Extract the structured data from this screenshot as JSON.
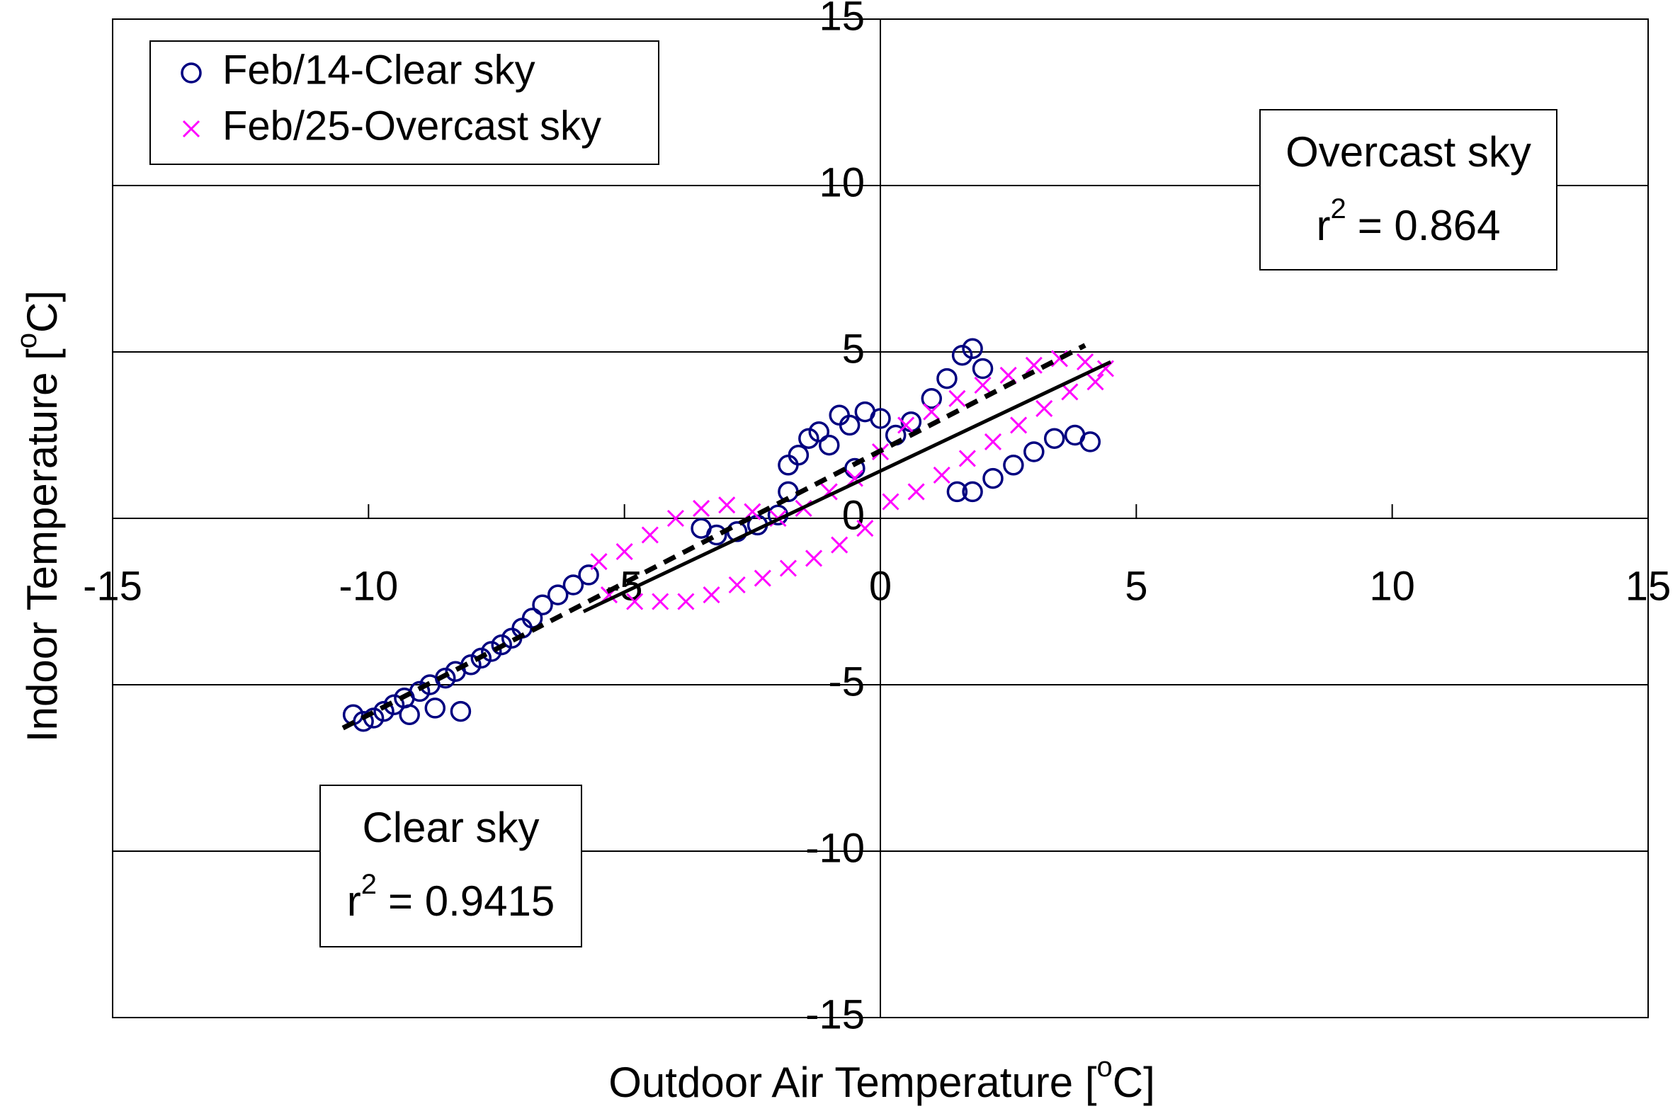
{
  "chart_data": {
    "type": "scatter",
    "xlabel": {
      "pre": "Outdoor Air Temperature [",
      "sup": "o",
      "post": "C]"
    },
    "ylabel": {
      "pre": "Indoor Temperature [",
      "sup": "o",
      "post": "C]"
    },
    "xlim": [
      -15,
      15
    ],
    "ylim": [
      -15,
      15
    ],
    "xticks": [
      -15,
      -10,
      -5,
      0,
      5,
      10,
      15
    ],
    "yticks": [
      -15,
      -10,
      -5,
      0,
      5,
      10,
      15
    ],
    "legend": "upper left",
    "series": [
      {
        "name": "Feb/14-Clear sky",
        "color": "#000080",
        "marker": "circle",
        "x": [
          -10.3,
          -10.1,
          -9.9,
          -9.7,
          -9.5,
          -9.3,
          -9.2,
          -9.0,
          -8.8,
          -8.7,
          -8.5,
          -8.3,
          -8.2,
          -8.0,
          -7.8,
          -7.6,
          -7.4,
          -7.2,
          -7.0,
          -6.8,
          -6.6,
          -6.3,
          -6.0,
          -5.7,
          -3.5,
          -3.2,
          -2.8,
          -2.4,
          -2.0,
          -1.8,
          -1.8,
          -1.6,
          -1.4,
          -1.2,
          -1.0,
          -0.8,
          -0.6,
          -0.3,
          0.0,
          -0.5,
          0.3,
          0.6,
          1.0,
          1.3,
          1.6,
          1.8,
          1.5,
          1.8,
          2.2,
          2.6,
          3.0,
          3.4,
          3.8,
          4.1,
          2.0
        ],
        "y": [
          -5.9,
          -6.1,
          -6.0,
          -5.8,
          -5.6,
          -5.4,
          -5.9,
          -5.2,
          -5.0,
          -5.7,
          -4.8,
          -4.6,
          -5.8,
          -4.4,
          -4.2,
          -4.0,
          -3.8,
          -3.6,
          -3.3,
          -3.0,
          -2.6,
          -2.3,
          -2.0,
          -1.7,
          -0.3,
          -0.5,
          -0.4,
          -0.2,
          0.1,
          0.8,
          1.6,
          1.9,
          2.4,
          2.6,
          2.2,
          3.1,
          2.8,
          3.2,
          3.0,
          1.5,
          2.5,
          2.9,
          3.6,
          4.2,
          4.9,
          5.1,
          0.8,
          0.8,
          1.2,
          1.6,
          2.0,
          2.4,
          2.5,
          2.3,
          4.5
        ]
      },
      {
        "name": "Feb/25-Overcast sky",
        "color": "#ff00ff",
        "marker": "x",
        "x": [
          -5.5,
          -5.0,
          -4.5,
          -4.0,
          -3.5,
          -3.0,
          -2.5,
          -2.0,
          -1.5,
          -1.0,
          -0.5,
          0.0,
          0.5,
          1.0,
          1.5,
          2.0,
          2.5,
          3.0,
          3.5,
          4.0,
          4.4,
          -5.3,
          -4.8,
          -4.3,
          -3.8,
          -3.3,
          -2.8,
          -2.3,
          -1.8,
          -1.3,
          -0.8,
          -0.3,
          0.2,
          0.7,
          1.2,
          1.7,
          2.2,
          2.7,
          3.2,
          3.7,
          4.2
        ],
        "y": [
          -1.3,
          -1.0,
          -0.5,
          0.0,
          0.3,
          0.4,
          0.2,
          0.0,
          0.3,
          0.8,
          1.2,
          2.0,
          2.8,
          3.2,
          3.6,
          4.0,
          4.3,
          4.6,
          4.8,
          4.7,
          4.5,
          -2.3,
          -2.5,
          -2.5,
          -2.5,
          -2.3,
          -2.0,
          -1.8,
          -1.5,
          -1.2,
          -0.8,
          -0.3,
          0.5,
          0.8,
          1.3,
          1.8,
          2.3,
          2.8,
          3.3,
          3.8,
          4.1
        ]
      }
    ],
    "trendlines": [
      {
        "x": [
          -10.5,
          4.0
        ],
        "y": [
          -6.3,
          5.2
        ],
        "dash": true
      },
      {
        "x": [
          -5.8,
          4.5
        ],
        "y": [
          -2.8,
          4.7
        ],
        "dash": false
      }
    ],
    "annotations": [
      {
        "title": "Overcast sky",
        "r": "r",
        "sup": "2",
        "value": "= 0.864"
      },
      {
        "title": "Clear sky",
        "r": "r",
        "sup": "2",
        "value": "= 0.9415"
      }
    ]
  }
}
